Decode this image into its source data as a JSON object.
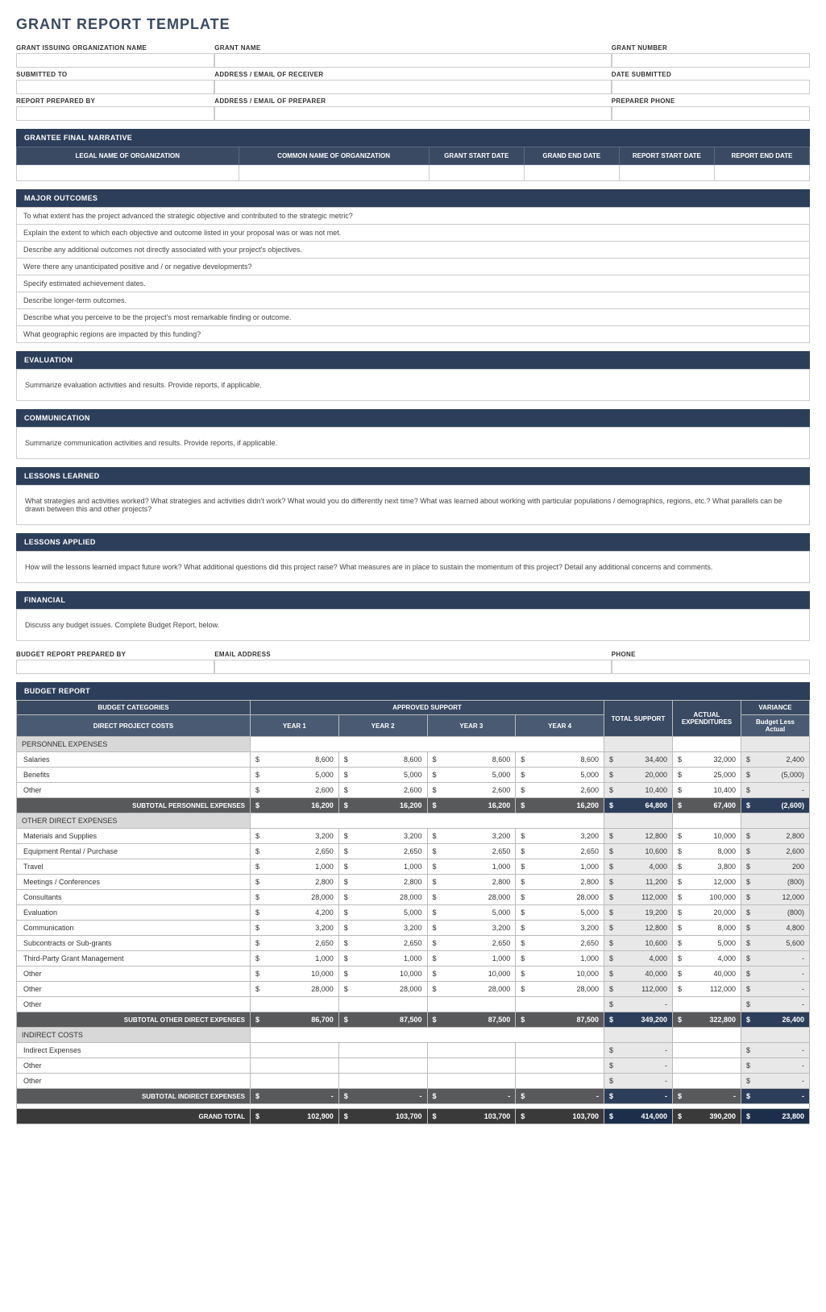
{
  "title": "GRANT REPORT TEMPLATE",
  "header_fields": {
    "r1": [
      {
        "label": "GRANT ISSUING ORGANIZATION NAME"
      },
      {
        "label": "GRANT NAME"
      },
      {
        "label": "GRANT NUMBER"
      }
    ],
    "r2": [
      {
        "label": "SUBMITTED TO"
      },
      {
        "label": "ADDRESS / EMAIL OF RECEIVER"
      },
      {
        "label": "DATE SUBMITTED"
      }
    ],
    "r3": [
      {
        "label": "REPORT PREPARED BY"
      },
      {
        "label": "ADDRESS / EMAIL OF PREPARER"
      },
      {
        "label": "PREPARER PHONE"
      }
    ]
  },
  "narrative": {
    "header": "GRANTEE FINAL NARRATIVE",
    "cols": [
      "LEGAL NAME OF ORGANIZATION",
      "COMMON NAME OF ORGANIZATION",
      "GRANT START DATE",
      "GRAND END DATE",
      "REPORT START DATE",
      "REPORT END DATE"
    ]
  },
  "outcomes": {
    "header": "MAJOR OUTCOMES",
    "items": [
      "To what extent has the project advanced the strategic objective and contributed to the strategic metric?",
      "Explain the extent to which each objective and outcome listed in your proposal was or was not met.",
      "Describe any additional outcomes not directly associated with your project's objectives.",
      "Were there any unanticipated positive and / or negative developments?",
      "Specify estimated achievement dates.",
      "Describe longer-term outcomes.",
      "Describe what you perceive to be the project's most remarkable finding or outcome.",
      "What geographic regions are impacted by this funding?"
    ]
  },
  "sections": [
    {
      "header": "EVALUATION",
      "text": "Summarize evaluation activities and results.  Provide reports, if applicable."
    },
    {
      "header": "COMMUNICATION",
      "text": "Summarize communication activities and results.  Provide reports, if applicable."
    },
    {
      "header": "LESSONS LEARNED",
      "text": "What strategies and activities worked?  What strategies and activities didn't work?  What would you do differently next time?  What was learned about working with particular populations / demographics, regions, etc.?  What parallels can be drawn between this and other projects?"
    },
    {
      "header": "LESSONS APPLIED",
      "text": "How will the lessons learned impact future work?  What additional questions did this project raise?  What measures are in place to sustain the momentum of this project?  Detail any additional concerns and comments."
    },
    {
      "header": "FINANCIAL",
      "text": "Discuss any budget issues.  Complete Budget Report, below."
    }
  ],
  "budget_prep": {
    "r": [
      {
        "label": "BUDGET REPORT PREPARED BY"
      },
      {
        "label": "EMAIL ADDRESS"
      },
      {
        "label": "PHONE"
      }
    ]
  },
  "budget": {
    "header": "BUDGET REPORT",
    "col_headers": {
      "categories": "BUDGET CATEGORIES",
      "approved": "APPROVED SUPPORT",
      "total": "TOTAL SUPPORT",
      "actual": "ACTUAL EXPENDITURES",
      "variance": "VARIANCE",
      "variance_sub": "Budget Less Actual",
      "direct": "DIRECT PROJECT COSTS",
      "years": [
        "YEAR 1",
        "YEAR 2",
        "YEAR 3",
        "YEAR 4"
      ]
    },
    "groups": [
      {
        "name": "PERSONNEL EXPENSES",
        "rows": [
          {
            "label": "Salaries",
            "y": [
              "8,600",
              "8,600",
              "8,600",
              "8,600"
            ],
            "total": "34,400",
            "actual": "32,000",
            "var": "2,400"
          },
          {
            "label": "Benefits",
            "y": [
              "5,000",
              "5,000",
              "5,000",
              "5,000"
            ],
            "total": "20,000",
            "actual": "25,000",
            "var": "(5,000)"
          },
          {
            "label": "Other",
            "y": [
              "2,600",
              "2,600",
              "2,600",
              "2,600"
            ],
            "total": "10,400",
            "actual": "10,400",
            "var": "-"
          }
        ],
        "subtotal": {
          "label": "SUBTOTAL PERSONNEL EXPENSES",
          "y": [
            "16,200",
            "16,200",
            "16,200",
            "16,200"
          ],
          "total": "64,800",
          "actual": "67,400",
          "var": "(2,600)"
        }
      },
      {
        "name": "OTHER DIRECT EXPENSES",
        "rows": [
          {
            "label": "Materials and Supplies",
            "y": [
              "3,200",
              "3,200",
              "3,200",
              "3,200"
            ],
            "total": "12,800",
            "actual": "10,000",
            "var": "2,800"
          },
          {
            "label": "Equipment Rental / Purchase",
            "y": [
              "2,650",
              "2,650",
              "2,650",
              "2,650"
            ],
            "total": "10,600",
            "actual": "8,000",
            "var": "2,600"
          },
          {
            "label": "Travel",
            "y": [
              "1,000",
              "1,000",
              "1,000",
              "1,000"
            ],
            "total": "4,000",
            "actual": "3,800",
            "var": "200"
          },
          {
            "label": "Meetings / Conferences",
            "y": [
              "2,800",
              "2,800",
              "2,800",
              "2,800"
            ],
            "total": "11,200",
            "actual": "12,000",
            "var": "(800)"
          },
          {
            "label": "Consultants",
            "y": [
              "28,000",
              "28,000",
              "28,000",
              "28,000"
            ],
            "total": "112,000",
            "actual": "100,000",
            "var": "12,000"
          },
          {
            "label": "Evaluation",
            "y": [
              "4,200",
              "5,000",
              "5,000",
              "5,000"
            ],
            "total": "19,200",
            "actual": "20,000",
            "var": "(800)"
          },
          {
            "label": "Communication",
            "y": [
              "3,200",
              "3,200",
              "3,200",
              "3,200"
            ],
            "total": "12,800",
            "actual": "8,000",
            "var": "4,800"
          },
          {
            "label": "Subcontracts or Sub-grants",
            "y": [
              "2,650",
              "2,650",
              "2,650",
              "2,650"
            ],
            "total": "10,600",
            "actual": "5,000",
            "var": "5,600"
          },
          {
            "label": "Third-Party Grant Management",
            "y": [
              "1,000",
              "1,000",
              "1,000",
              "1,000"
            ],
            "total": "4,000",
            "actual": "4,000",
            "var": "-"
          },
          {
            "label": "Other",
            "y": [
              "10,000",
              "10,000",
              "10,000",
              "10,000"
            ],
            "total": "40,000",
            "actual": "40,000",
            "var": "-"
          },
          {
            "label": "Other",
            "y": [
              "28,000",
              "28,000",
              "28,000",
              "28,000"
            ],
            "total": "112,000",
            "actual": "112,000",
            "var": "-"
          },
          {
            "label": "Other",
            "y": [
              "",
              "",
              "",
              ""
            ],
            "total": "-",
            "actual": "",
            "var": "-"
          }
        ],
        "subtotal": {
          "label": "SUBTOTAL OTHER DIRECT EXPENSES",
          "y": [
            "86,700",
            "87,500",
            "87,500",
            "87,500"
          ],
          "total": "349,200",
          "actual": "322,800",
          "var": "26,400"
        }
      },
      {
        "name": "INDIRECT COSTS",
        "rows": [
          {
            "label": "Indirect Expenses",
            "y": [
              "",
              "",
              "",
              ""
            ],
            "total": "-",
            "actual": "",
            "var": "-"
          },
          {
            "label": "Other",
            "y": [
              "",
              "",
              "",
              ""
            ],
            "total": "-",
            "actual": "",
            "var": "-"
          },
          {
            "label": "Other",
            "y": [
              "",
              "",
              "",
              ""
            ],
            "total": "-",
            "actual": "",
            "var": "-"
          }
        ],
        "subtotal": {
          "label": "SUBTOTAL INDIRECT EXPENSES",
          "y": [
            "-",
            "-",
            "-",
            "-"
          ],
          "total": "-",
          "actual": "-",
          "var": "-"
        }
      }
    ],
    "grand": {
      "label": "GRAND TOTAL",
      "y": [
        "102,900",
        "103,700",
        "103,700",
        "103,700"
      ],
      "total": "414,000",
      "actual": "390,200",
      "var": "23,800"
    }
  }
}
